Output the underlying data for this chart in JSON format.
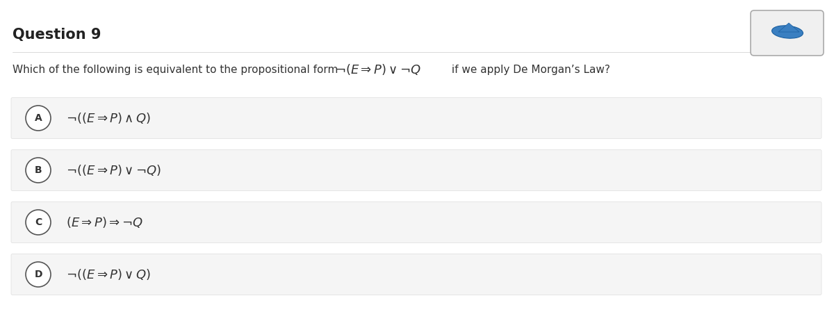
{
  "title": "Question 9",
  "question_text": "Which of the following is equivalent to the propositional form",
  "question_formula": "$\\neg(E \\Rightarrow P) \\vee \\neg Q$",
  "question_suffix": " if we apply De Morgan’s Law?",
  "options": [
    {
      "label": "A",
      "formula": "$\\neg((E \\Rightarrow P) \\wedge Q)$"
    },
    {
      "label": "B",
      "formula": "$\\neg((E \\Rightarrow P) \\vee \\neg Q)$"
    },
    {
      "label": "C",
      "formula": "$(E \\Rightarrow P) \\Rightarrow \\neg Q$"
    },
    {
      "label": "D",
      "formula": "$\\neg((E \\Rightarrow P) \\vee Q)$"
    }
  ],
  "bg_color": "#ffffff",
  "option_bg_color": "#f5f5f5",
  "option_border_color": "#dddddd",
  "title_color": "#222222",
  "text_color": "#333333",
  "circle_edge_color": "#555555",
  "circle_face_color": "#ffffff",
  "label_color": "#333333",
  "icon_box_color": "#f0f0f0",
  "icon_border_color": "#aaaaaa"
}
